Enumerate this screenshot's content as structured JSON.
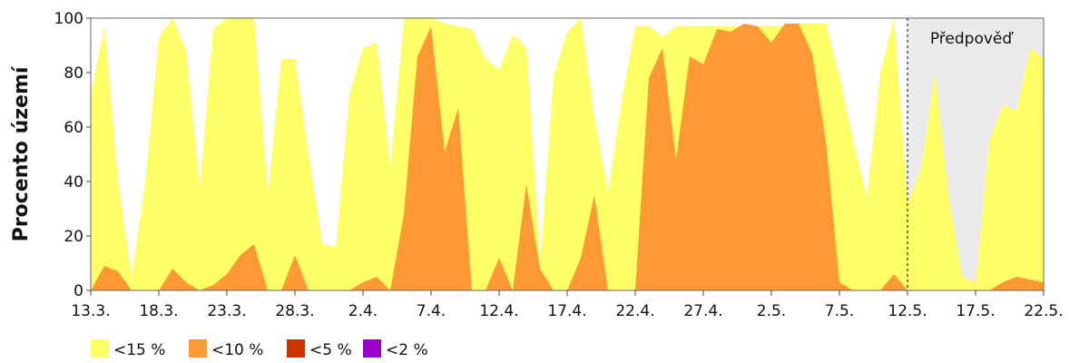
{
  "chart_data": {
    "type": "area",
    "title": "",
    "xlabel": "",
    "ylabel": "Procento území",
    "ylim": [
      0,
      100
    ],
    "yticks": [
      0,
      20,
      40,
      60,
      80,
      100
    ],
    "xlim": [
      "13.3.",
      "22.5."
    ],
    "x_tick_labels": [
      "13.3.",
      "18.3.",
      "23.3.",
      "28.3.",
      "2.4.",
      "7.4.",
      "12.4.",
      "17.4.",
      "22.4.",
      "27.4.",
      "2.5.",
      "7.5.",
      "12.5.",
      "17.5.",
      "22.5."
    ],
    "forecast": {
      "label": "Předpověď",
      "start": "12.5.",
      "end": "22.5.",
      "color": "#ebebeb"
    },
    "grid": false,
    "legend_position": "bottom-left",
    "x": [
      "13.3.",
      "14.3.",
      "15.3.",
      "16.3.",
      "17.3.",
      "18.3.",
      "19.3.",
      "20.3.",
      "21.3.",
      "22.3.",
      "23.3.",
      "24.3.",
      "25.3.",
      "26.3.",
      "27.3.",
      "28.3.",
      "29.3.",
      "30.3.",
      "31.3.",
      "1.4.",
      "2.4.",
      "3.4.",
      "4.4.",
      "5.4.",
      "6.4.",
      "7.4.",
      "8.4.",
      "9.4.",
      "10.4.",
      "11.4.",
      "12.4.",
      "13.4.",
      "14.4.",
      "15.4.",
      "16.4.",
      "17.4.",
      "18.4.",
      "19.4.",
      "20.4.",
      "21.4.",
      "22.4.",
      "23.4.",
      "24.4.",
      "25.4.",
      "26.4.",
      "27.4.",
      "28.4.",
      "29.4.",
      "30.4.",
      "1.5.",
      "2.5.",
      "3.5.",
      "4.5.",
      "5.5.",
      "6.5.",
      "7.5.",
      "8.5.",
      "9.5.",
      "10.5.",
      "11.5.",
      "12.5.",
      "13.5.",
      "14.5.",
      "15.5.",
      "16.5.",
      "17.5.",
      "18.5.",
      "19.5.",
      "20.5.",
      "21.5.",
      "22.5."
    ],
    "series": [
      {
        "name": "<15 %",
        "color": "#ffff66",
        "values": [
          72,
          97,
          40,
          5,
          40,
          93,
          100,
          88,
          38,
          96,
          100,
          100,
          100,
          35,
          85,
          85,
          50,
          17,
          16,
          72,
          89,
          91,
          45,
          100,
          100,
          100,
          98,
          97,
          96,
          85,
          81,
          94,
          89,
          10,
          79,
          95,
          100,
          63,
          36,
          70,
          97,
          97,
          93,
          97,
          97,
          97,
          97,
          97,
          97,
          97,
          97,
          97,
          98,
          98,
          98,
          78,
          55,
          34,
          80,
          100,
          32,
          45,
          80,
          35,
          5,
          3,
          55,
          68,
          66,
          89,
          85
        ]
      },
      {
        "name": "<10 %",
        "color": "#ff9933",
        "values": [
          0,
          9,
          7,
          0,
          0,
          0,
          8,
          3,
          0,
          2,
          6,
          13,
          17,
          0,
          0,
          13,
          0,
          0,
          0,
          0,
          3,
          5,
          0,
          28,
          86,
          97,
          51,
          67,
          0,
          0,
          12,
          0,
          39,
          8,
          0,
          0,
          12,
          35,
          0,
          0,
          0,
          78,
          89,
          48,
          86,
          83,
          96,
          95,
          98,
          97,
          91,
          98,
          98,
          87,
          55,
          3,
          0,
          0,
          0,
          6,
          0,
          0,
          0,
          0,
          0,
          0,
          0,
          3,
          5,
          4,
          3
        ]
      },
      {
        "name": "<5 %",
        "color": "#cc3300",
        "values": [
          0,
          0,
          0,
          0,
          0,
          0,
          0,
          0,
          0,
          0,
          0,
          0,
          0,
          0,
          0,
          0,
          0,
          0,
          0,
          0,
          0,
          0,
          0,
          0,
          0,
          0,
          0,
          0,
          0,
          0,
          0,
          0,
          0,
          0,
          0,
          0,
          0,
          0,
          0,
          0,
          0,
          0,
          0,
          0,
          0,
          0,
          0,
          0,
          0,
          0,
          0,
          0,
          0,
          0,
          0,
          0,
          0,
          0,
          0,
          0,
          0,
          0,
          0,
          0,
          0,
          0,
          0,
          0,
          0,
          0,
          0
        ]
      },
      {
        "name": "<2 %",
        "color": "#9900cc",
        "values": [
          0,
          0,
          0,
          0,
          0,
          0,
          0,
          0,
          0,
          0,
          0,
          0,
          0,
          0,
          0,
          0,
          0,
          0,
          0,
          0,
          0,
          0,
          0,
          0,
          0,
          0,
          0,
          0,
          0,
          0,
          0,
          0,
          0,
          0,
          0,
          0,
          0,
          0,
          0,
          0,
          0,
          0,
          0,
          0,
          0,
          0,
          0,
          0,
          0,
          0,
          0,
          0,
          0,
          0,
          0,
          0,
          0,
          0,
          0,
          0,
          0,
          0,
          0,
          0,
          0,
          0,
          0,
          0,
          0,
          0,
          0
        ]
      }
    ]
  }
}
